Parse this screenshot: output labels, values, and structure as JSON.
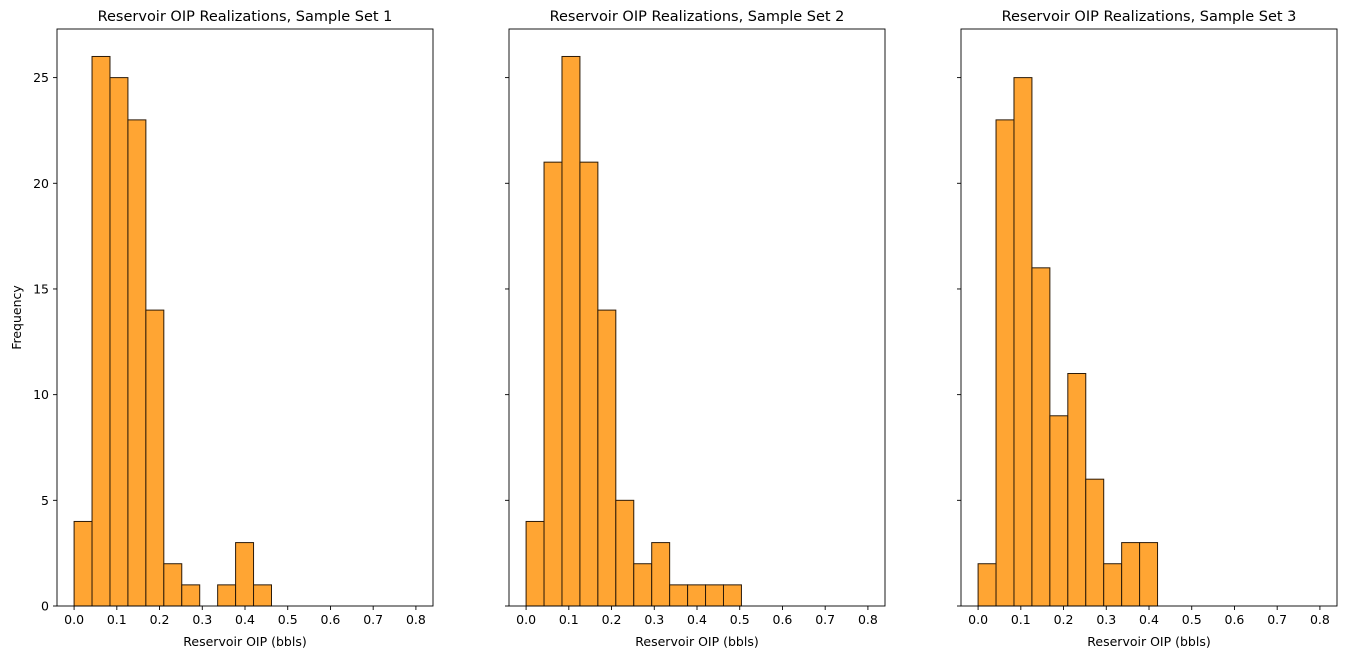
{
  "chart_data": [
    {
      "type": "bar",
      "title": "Reservoir OIP Realizations, Sample Set 1",
      "xlabel": "Reservoir OIP (bbls)",
      "ylabel": "Frequency",
      "bin_edges": [
        0.0,
        0.042,
        0.084,
        0.126,
        0.168,
        0.21,
        0.252,
        0.294,
        0.336,
        0.378,
        0.42,
        0.462
      ],
      "values": [
        4,
        26,
        25,
        23,
        14,
        2,
        1,
        0,
        1,
        3,
        1
      ],
      "xlim": [
        -0.04,
        0.84
      ],
      "ylim": [
        0,
        27.3
      ],
      "xticks": [
        "0.0",
        "0.1",
        "0.2",
        "0.3",
        "0.4",
        "0.5",
        "0.6",
        "0.7",
        "0.8"
      ],
      "yticks": [
        "0",
        "5",
        "10",
        "15",
        "20",
        "25"
      ],
      "bar_color": "#ffa533",
      "edge_color": "#2b1a08"
    },
    {
      "type": "bar",
      "title": "Reservoir OIP Realizations, Sample Set 2",
      "xlabel": "Reservoir OIP (bbls)",
      "ylabel": "",
      "bin_edges": [
        0.0,
        0.042,
        0.084,
        0.126,
        0.168,
        0.21,
        0.252,
        0.294,
        0.336,
        0.378,
        0.42,
        0.462,
        0.504
      ],
      "values": [
        4,
        21,
        26,
        21,
        14,
        5,
        2,
        3,
        1,
        1,
        1,
        1
      ],
      "xlim": [
        -0.04,
        0.84
      ],
      "ylim": [
        0,
        27.3
      ],
      "xticks": [
        "0.0",
        "0.1",
        "0.2",
        "0.3",
        "0.4",
        "0.5",
        "0.6",
        "0.7",
        "0.8"
      ],
      "yticks": [
        "0",
        "5",
        "10",
        "15",
        "20",
        "25"
      ],
      "bar_color": "#ffa533",
      "edge_color": "#2b1a08"
    },
    {
      "type": "bar",
      "title": "Reservoir OIP Realizations, Sample Set 3",
      "xlabel": "Reservoir OIP (bbls)",
      "ylabel": "",
      "bin_edges": [
        0.0,
        0.042,
        0.084,
        0.126,
        0.168,
        0.21,
        0.252,
        0.294,
        0.336,
        0.378,
        0.42
      ],
      "values": [
        2,
        23,
        25,
        16,
        9,
        11,
        6,
        2,
        3,
        3
      ],
      "xlim": [
        -0.04,
        0.84
      ],
      "ylim": [
        0,
        27.3
      ],
      "xticks": [
        "0.0",
        "0.1",
        "0.2",
        "0.3",
        "0.4",
        "0.5",
        "0.6",
        "0.7",
        "0.8"
      ],
      "yticks": [
        "0",
        "5",
        "10",
        "15",
        "20",
        "25"
      ],
      "bar_color": "#ffa533",
      "edge_color": "#2b1a08"
    }
  ]
}
